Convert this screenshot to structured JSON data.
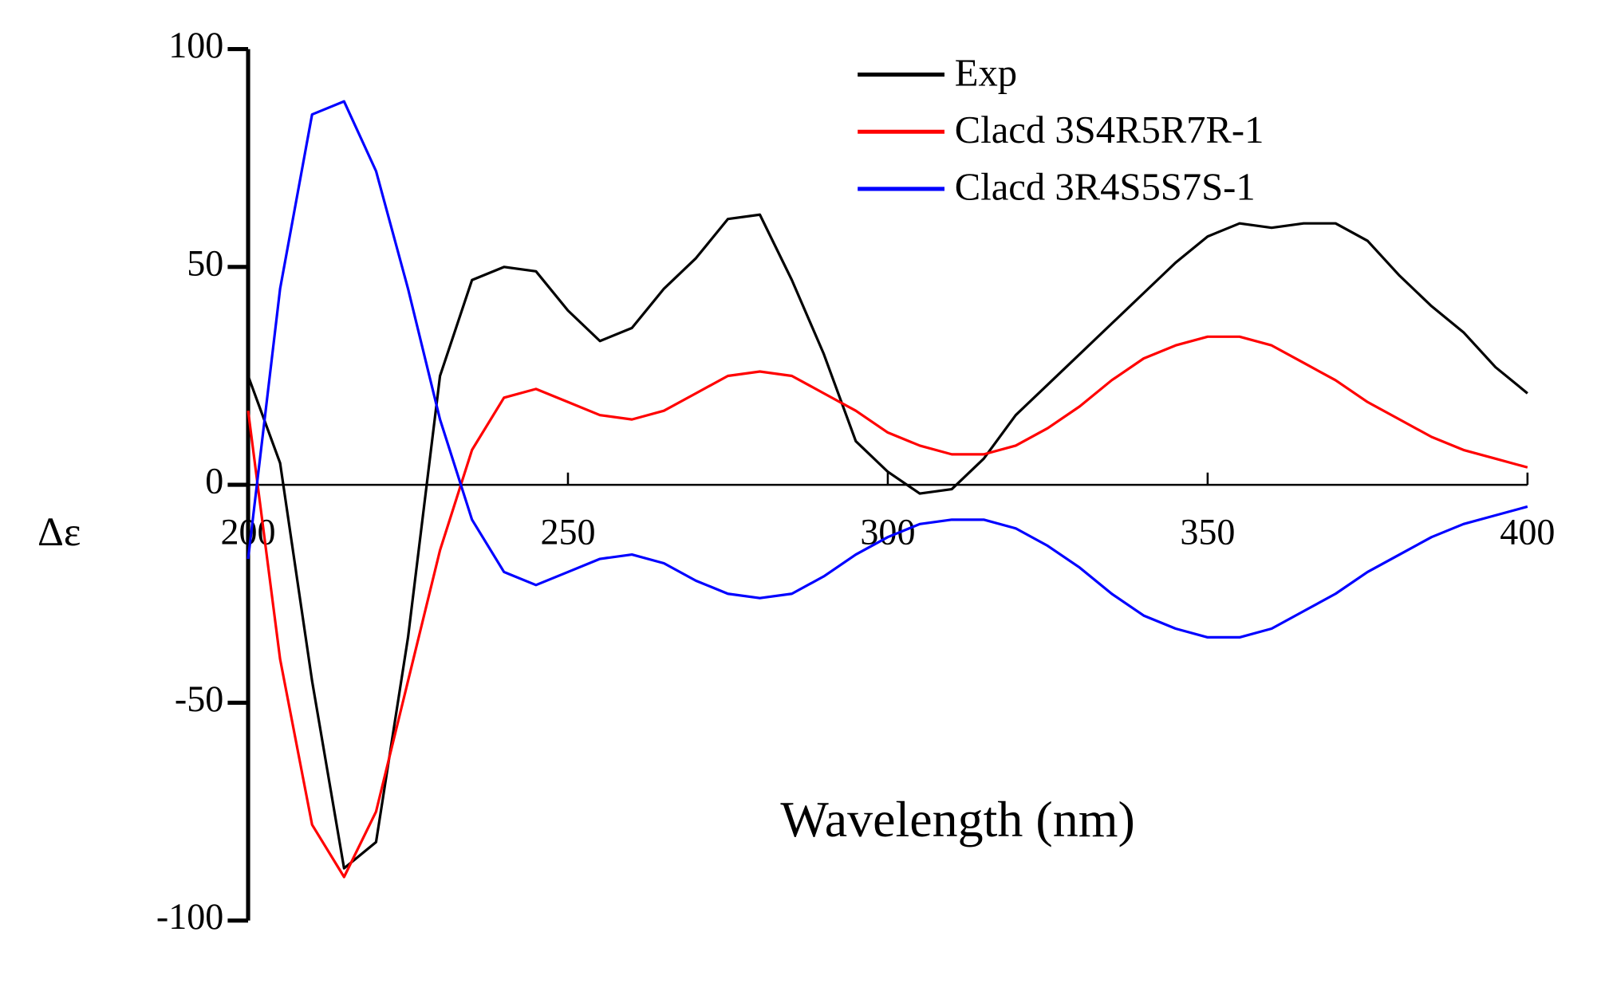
{
  "chart_data": {
    "type": "line",
    "xlabel": "Wavelength (nm)",
    "ylabel": "Δε",
    "x": [
      200,
      205,
      210,
      215,
      220,
      225,
      230,
      235,
      240,
      245,
      250,
      255,
      260,
      265,
      270,
      275,
      280,
      285,
      290,
      295,
      300,
      305,
      310,
      315,
      320,
      325,
      330,
      335,
      340,
      345,
      350,
      355,
      360,
      365,
      370,
      375,
      380,
      385,
      390,
      395,
      400
    ],
    "series": [
      {
        "name": "Exp",
        "color": "#000000",
        "values": [
          25,
          5,
          -45,
          -88,
          -82,
          -35,
          25,
          47,
          50,
          49,
          40,
          33,
          36,
          45,
          52,
          61,
          62,
          47,
          30,
          10,
          3,
          -2,
          -1,
          6,
          16,
          23,
          30,
          37,
          44,
          51,
          57,
          60,
          59,
          60,
          60,
          56,
          48,
          41,
          35,
          27,
          21
        ]
      },
      {
        "name": "Clacd 3S4R5R7R-1",
        "color": "#ff0000",
        "values": [
          17,
          -40,
          -78,
          -90,
          -75,
          -45,
          -15,
          8,
          20,
          22,
          19,
          16,
          15,
          17,
          21,
          25,
          26,
          25,
          21,
          17,
          12,
          9,
          7,
          7,
          9,
          13,
          18,
          24,
          29,
          32,
          34,
          34,
          32,
          28,
          24,
          19,
          15,
          11,
          8,
          6,
          4
        ]
      },
      {
        "name": "Clacd 3R4S5S7S-1",
        "color": "#0000ff",
        "values": [
          -17,
          45,
          85,
          88,
          72,
          45,
          15,
          -8,
          -20,
          -23,
          -20,
          -17,
          -16,
          -18,
          -22,
          -25,
          -26,
          -25,
          -21,
          -16,
          -12,
          -9,
          -8,
          -8,
          -10,
          -14,
          -19,
          -25,
          -30,
          -33,
          -35,
          -35,
          -33,
          -29,
          -25,
          -20,
          -16,
          -12,
          -9,
          -7,
          -5
        ]
      }
    ],
    "xlim": [
      200,
      400
    ],
    "xticks": [
      200,
      250,
      300,
      350,
      400
    ],
    "ylim": [
      -100,
      100
    ],
    "yticks": [
      -100,
      -50,
      0,
      50,
      100
    ],
    "grid": false,
    "legend": "upper right"
  }
}
